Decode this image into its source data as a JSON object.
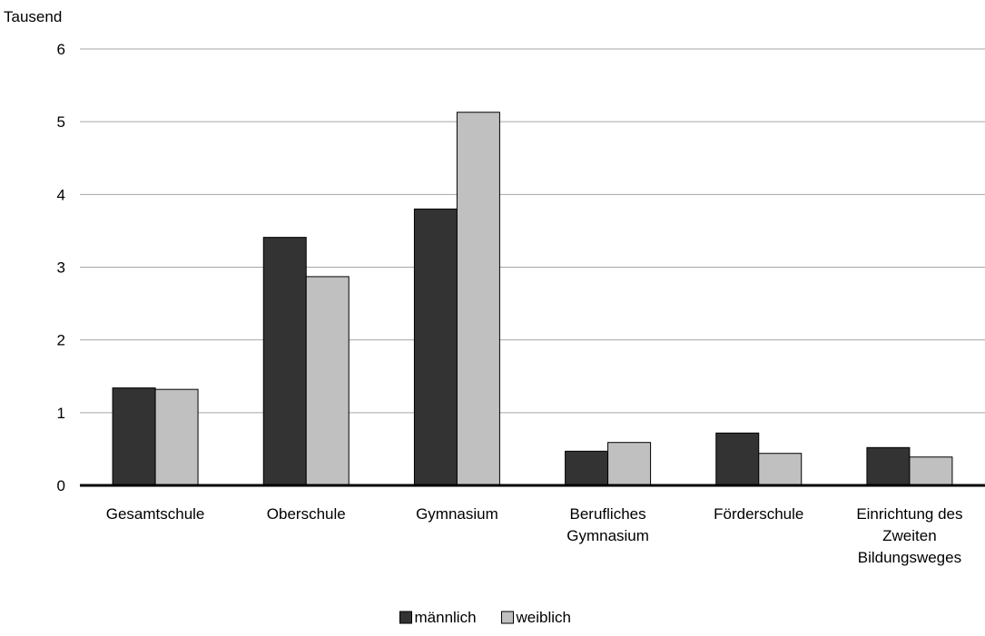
{
  "chart_data": {
    "type": "bar",
    "title": "",
    "unit_label": "Tausend",
    "xlabel": "",
    "ylabel": "",
    "ylim": [
      0,
      6
    ],
    "yticks": [
      0,
      1,
      2,
      3,
      4,
      5,
      6
    ],
    "grid": true,
    "legend_position": "bottom-center",
    "categories": [
      [
        "Gesamtschule"
      ],
      [
        "Oberschule"
      ],
      [
        "Gymnasium"
      ],
      [
        "Berufliches",
        "Gymnasium"
      ],
      [
        "Förderschule"
      ],
      [
        "Einrichtung des",
        "Zweiten",
        "Bildungsweges"
      ]
    ],
    "series": [
      {
        "name": "männlich",
        "color": "#333333",
        "values": [
          1.34,
          3.41,
          3.8,
          0.47,
          0.72,
          0.52
        ]
      },
      {
        "name": "weiblich",
        "color": "#c0c0c0",
        "values": [
          1.32,
          2.87,
          5.13,
          0.59,
          0.44,
          0.39
        ]
      }
    ]
  }
}
